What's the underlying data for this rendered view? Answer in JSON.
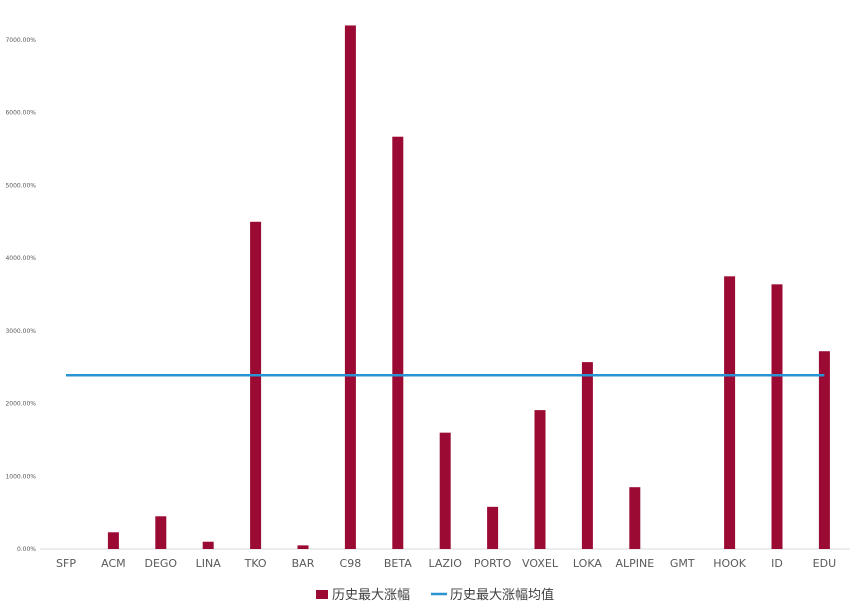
{
  "chart_data": {
    "type": "bar",
    "categories": [
      "SFP",
      "ACM",
      "DEGO",
      "LINA",
      "TKO",
      "BAR",
      "C98",
      "BETA",
      "LAZIO",
      "PORTO",
      "VOXEL",
      "LOKA",
      "ALPINE",
      "GMT",
      "HOOK",
      "ID",
      "EDU"
    ],
    "series": [
      {
        "name": "历史最大涨幅",
        "type": "bar",
        "color": "#9b0a33",
        "values": [
          0,
          230,
          450,
          100,
          4500,
          50,
          7200,
          5670,
          1600,
          580,
          1910,
          2570,
          850,
          0,
          3750,
          3640,
          2720
        ]
      },
      {
        "name": "历史最大涨幅均值",
        "type": "line",
        "color": "#2a93d1",
        "value": 2390
      }
    ],
    "y_ticks": [
      "0.00%",
      "1000.00%",
      "2000.00%",
      "3000.00%",
      "4000.00%",
      "5000.00%",
      "6000.00%",
      "7000.00%"
    ],
    "ylim": [
      0,
      7000
    ],
    "title": "",
    "xlabel": "",
    "ylabel": "",
    "grid": false,
    "legend_position": "bottom"
  }
}
